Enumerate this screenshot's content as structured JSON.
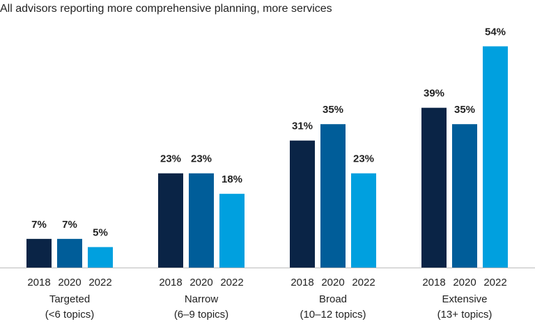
{
  "chart_data": {
    "type": "bar",
    "title": "All advisors reporting more comprehensive planning, more services",
    "categories": [
      [
        "Targeted",
        "(<6 topics)"
      ],
      [
        "Narrow",
        "(6–9 topics)"
      ],
      [
        "Broad",
        "(10–12 topics)"
      ],
      [
        "Extensive",
        "(13+ topics)"
      ]
    ],
    "series": [
      {
        "name": "2018",
        "color": "#0a2446",
        "values": [
          7,
          23,
          31,
          39
        ],
        "value_labels": [
          "7%",
          "23%",
          "31%",
          "39%"
        ]
      },
      {
        "name": "2020",
        "color": "#005d99",
        "values": [
          7,
          23,
          35,
          35
        ],
        "value_labels": [
          "7%",
          "23%",
          "35%",
          "35%"
        ]
      },
      {
        "name": "2022",
        "color": "#00a0df",
        "values": [
          5,
          18,
          23,
          54
        ],
        "value_labels": [
          "5%",
          "18%",
          "23%",
          "54%"
        ]
      }
    ]
  }
}
